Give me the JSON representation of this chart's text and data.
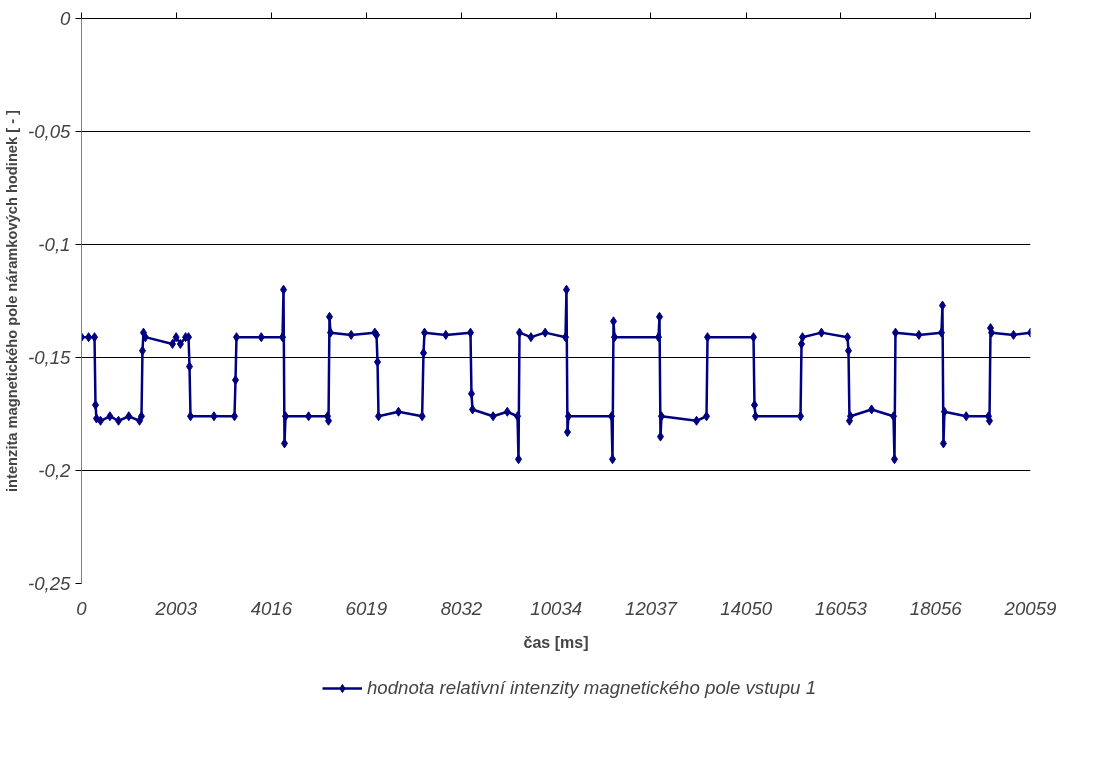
{
  "chart_data": {
    "type": "line",
    "xlabel": "čas [ms]",
    "ylabel": "intenzita magnetického pole náramkových hodinek [ - ]",
    "xlim": [
      0,
      20059
    ],
    "xticks": [
      0,
      2003,
      4016,
      6019,
      8032,
      10034,
      12037,
      14050,
      16053,
      18056,
      20059
    ],
    "ylim": [
      -0.25,
      0
    ],
    "yticks": [
      {
        "value": -0.25,
        "label": "-0,25"
      },
      {
        "value": -0.2,
        "label": "-0,2"
      },
      {
        "value": -0.15,
        "label": "-0,15"
      },
      {
        "value": -0.1,
        "label": "-0,1"
      },
      {
        "value": -0.05,
        "label": "-0,05"
      },
      {
        "value": 0,
        "label": "0"
      }
    ],
    "grid": "y",
    "legend": "bottom",
    "marker": "diamond",
    "line_style": "solid",
    "series": [
      {
        "name": "hodnota relativní intenzity magnetického pole vstupu 1",
        "color": "#000080",
        "x": [
          0,
          150,
          275,
          296,
          317,
          402,
          600,
          782,
          1000,
          1226,
          1268,
          1289,
          1310,
          1350,
          1923,
          2000,
          2090,
          2200,
          2262,
          2283,
          2304,
          2800,
          3234,
          3255,
          3276,
          3800,
          4249,
          4270,
          4291,
          4312,
          4800,
          5200,
          5221,
          5242,
          5263,
          5700,
          6200,
          6236,
          6257,
          6278,
          6700,
          7200,
          7229,
          7250,
          7700,
          8222,
          8243,
          8265,
          8700,
          9000,
          9216,
          9237,
          9258,
          9500,
          9800,
          10230,
          10251,
          10272,
          10293,
          11203,
          11224,
          11245,
          11266,
          12196,
          12217,
          12238,
          12259,
          13000,
          13211,
          13232,
          14204,
          14225,
          14246,
          15198,
          15219,
          15240,
          15641,
          16190,
          16212,
          16233,
          16254,
          16700,
          17163,
          17184,
          17205,
          17700,
          18177,
          18198,
          18219,
          18240,
          18700,
          19171,
          19192,
          19214,
          19235,
          19700,
          20059
        ],
        "values": [
          -0.141,
          -0.141,
          -0.141,
          -0.171,
          -0.177,
          -0.178,
          -0.176,
          -0.178,
          -0.176,
          -0.178,
          -0.176,
          -0.147,
          -0.139,
          -0.141,
          -0.144,
          -0.141,
          -0.144,
          -0.141,
          -0.141,
          -0.154,
          -0.176,
          -0.176,
          -0.176,
          -0.16,
          -0.141,
          -0.141,
          -0.141,
          -0.12,
          -0.188,
          -0.176,
          -0.176,
          -0.176,
          -0.178,
          -0.132,
          -0.139,
          -0.14,
          -0.139,
          -0.14,
          -0.152,
          -0.176,
          -0.174,
          -0.176,
          -0.148,
          -0.139,
          -0.14,
          -0.139,
          -0.166,
          -0.173,
          -0.176,
          -0.174,
          -0.176,
          -0.195,
          -0.139,
          -0.141,
          -0.139,
          -0.141,
          -0.12,
          -0.183,
          -0.176,
          -0.176,
          -0.195,
          -0.134,
          -0.141,
          -0.141,
          -0.132,
          -0.185,
          -0.176,
          -0.178,
          -0.176,
          -0.141,
          -0.141,
          -0.171,
          -0.176,
          -0.176,
          -0.144,
          -0.141,
          -0.139,
          -0.141,
          -0.147,
          -0.178,
          -0.176,
          -0.173,
          -0.176,
          -0.195,
          -0.139,
          -0.14,
          -0.139,
          -0.127,
          -0.188,
          -0.174,
          -0.176,
          -0.176,
          -0.178,
          -0.137,
          -0.139,
          -0.14,
          -0.139
        ]
      }
    ]
  }
}
